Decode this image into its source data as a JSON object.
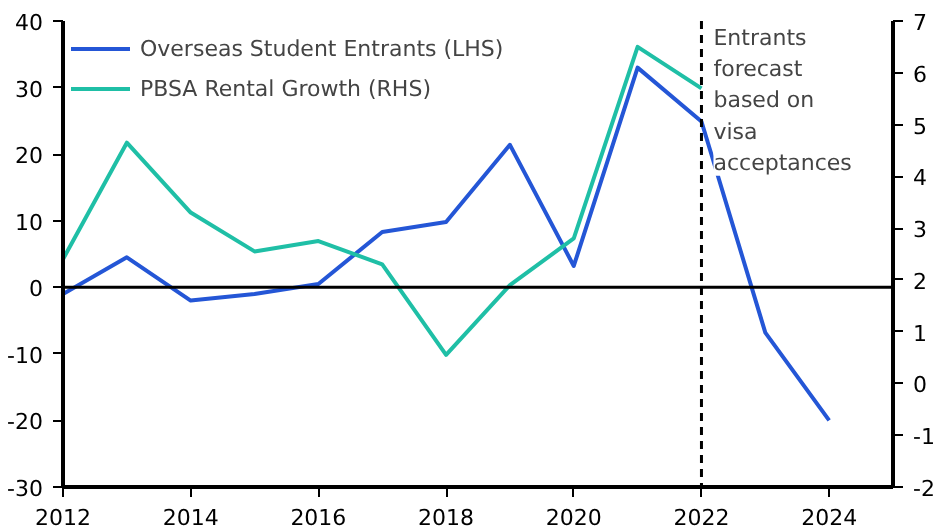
{
  "chart_data": {
    "type": "line",
    "x": [
      2012,
      2013,
      2014,
      2015,
      2016,
      2017,
      2018,
      2019,
      2020,
      2021,
      2022,
      2023,
      2024
    ],
    "series": [
      {
        "name": "Overseas Student Entrants (LHS)",
        "color": "#2456d6",
        "values": [
          -1,
          4.5,
          -2,
          -1,
          0.5,
          8.3,
          9.8,
          21.4,
          3.2,
          33,
          24.9,
          -6.8,
          -20
        ]
      },
      {
        "name": "PBSA Rental Growth (RHS)",
        "color": "#1fbfa6",
        "axis": "y2",
        "values": [
          2.4,
          4.65,
          3.3,
          2.55,
          2.75,
          2.3,
          0.55,
          1.9,
          2.8,
          6.5,
          5.7,
          null,
          null
        ]
      }
    ],
    "xlim": [
      2012,
      2025
    ],
    "xticks": [
      2012,
      2014,
      2016,
      2018,
      2020,
      2022,
      2024
    ],
    "ylim": [
      -30,
      40
    ],
    "yticks": [
      -30,
      -20,
      -10,
      0,
      10,
      20,
      30,
      40
    ],
    "y2lim": [
      -2,
      7
    ],
    "y2ticks": [
      -2,
      -1,
      0,
      1,
      2,
      3,
      4,
      5,
      6,
      7
    ],
    "ref_lines": [
      {
        "axis": "y",
        "value": 0,
        "color": "#000000",
        "line_style": "solid"
      },
      {
        "axis": "x",
        "value": 2022,
        "label": "Entrants\nforecast\nbased on\nvisa\nacceptances",
        "color": "#000000",
        "line_style": "dashed"
      }
    ],
    "grid": false,
    "legend": "top left",
    "marker": "none",
    "line_style": "solid"
  }
}
